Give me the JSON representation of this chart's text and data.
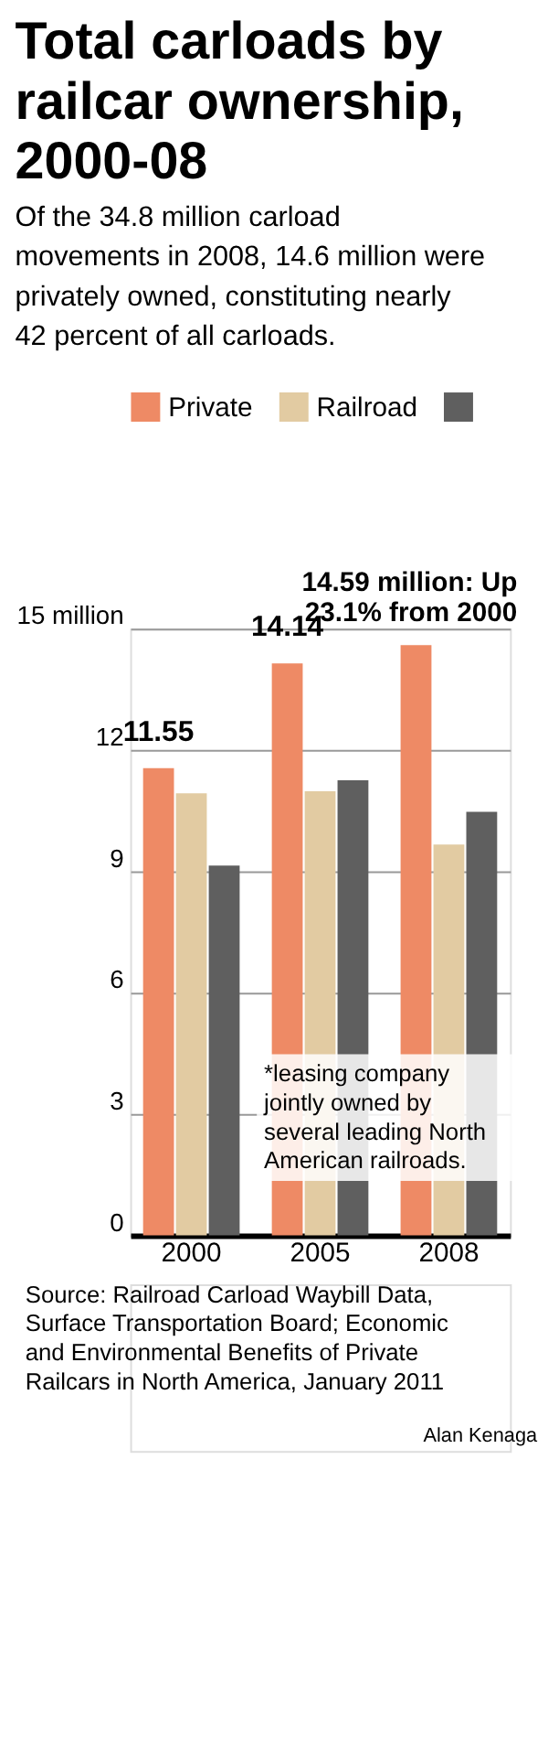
{
  "chart_data": {
    "type": "bar",
    "title": "Total carloads by railcar ownership, 2000-08",
    "subtitle": "Of the 34.8 million carload movements in 2008, 14.6 million were privately owned, constituting nearly 42 percent of all carloads.",
    "categories": [
      "2000",
      "2005",
      "2008"
    ],
    "series": [
      {
        "name": "Private",
        "color": "#ee8a65",
        "values": [
          11.55,
          14.14,
          14.59
        ],
        "value_labels": [
          "11.55",
          "14.14",
          null
        ]
      },
      {
        "name": "Railroad",
        "color": "#e2cba2",
        "values": [
          10.93,
          10.98,
          9.66
        ]
      },
      {
        "color": "#5f5f5f",
        "values": [
          9.14,
          11.25,
          10.47
        ]
      }
    ],
    "ylim": [
      0,
      15
    ],
    "yticks": [
      0,
      3,
      6,
      9,
      12,
      {
        "value": 15,
        "label": "15 million"
      }
    ],
    "grid": "y",
    "legend": "top",
    "annotations": [
      "14.59 million: Up\n23.1% from 2000",
      "*leasing company jointly owned by several leading North American railroads.",
      "Source: Railroad Carload Waybill Data, Surface Transportation Board; Economic and Environmental Benefits of Private Railcars in North America, January 2011",
      "Alan Kenaga"
    ]
  }
}
